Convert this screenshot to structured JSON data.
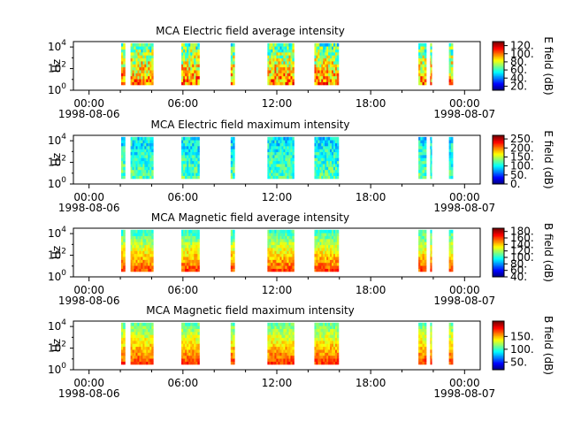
{
  "chart_data": [
    {
      "type": "heatmap",
      "title": "MCA  Electric field average intensity",
      "ylabel": "Hz",
      "colorbar_label": "E field (dB)",
      "colorbar_range": [
        10,
        130
      ],
      "colorbar_ticks": [
        "20.",
        "40.",
        "60.",
        "80.",
        "100.",
        "120."
      ],
      "y_ticks": [
        "10^0",
        "10^2",
        "10^4"
      ],
      "x_ticks": [
        "00:00",
        "06:00",
        "12:00",
        "18:00",
        "00:00"
      ],
      "x_dates": [
        "1998-08-06",
        "1998-08-07"
      ],
      "x_range_hours": [
        -1,
        25
      ],
      "y_range_log10": [
        0,
        4.5
      ],
      "segments_hours": [
        [
          2.05,
          2.3
        ],
        [
          2.65,
          4.1
        ],
        [
          5.9,
          7.05
        ],
        [
          9.05,
          9.3
        ],
        [
          11.4,
          13.1
        ],
        [
          14.4,
          15.95
        ],
        [
          21.05,
          21.55
        ],
        [
          21.8,
          21.9
        ],
        [
          23.0,
          23.25
        ]
      ],
      "value_profile": {
        "low_freq_dB": 100,
        "high_freq_dB": 65,
        "variability_dB": 22
      },
      "data_note_label": ""
    },
    {
      "type": "heatmap",
      "title": "MCA  Electric field maximum intensity",
      "ylabel": "Hz",
      "colorbar_label": "E field (dB)",
      "colorbar_range": [
        0,
        270
      ],
      "colorbar_ticks": [
        "0.",
        "50.",
        "100.",
        "150.",
        "200.",
        "250."
      ],
      "y_ticks": [
        "10^0",
        "10^2",
        "10^4"
      ],
      "x_ticks": [
        "00:00",
        "06:00",
        "12:00",
        "18:00",
        "00:00"
      ],
      "x_dates": [
        "1998-08-06",
        "1998-08-07"
      ],
      "x_range_hours": [
        -1,
        25
      ],
      "y_range_log10": [
        0,
        4.5
      ],
      "segments_hours": [
        [
          2.05,
          2.3
        ],
        [
          2.65,
          4.1
        ],
        [
          5.9,
          7.05
        ],
        [
          9.05,
          9.3
        ],
        [
          11.4,
          13.1
        ],
        [
          14.4,
          15.95
        ],
        [
          21.05,
          21.55
        ],
        [
          21.8,
          21.9
        ],
        [
          23.0,
          23.25
        ]
      ],
      "value_profile": {
        "low_freq_dB": 125,
        "high_freq_dB": 95,
        "variability_dB": 30
      },
      "data_note_label": ""
    },
    {
      "type": "heatmap",
      "title": "MCA  Magnetic field average intensity",
      "ylabel": "Hz",
      "colorbar_label": "B field (dB)",
      "colorbar_range": [
        40,
        190
      ],
      "colorbar_ticks": [
        "40.",
        "60.",
        "80.",
        "100.",
        "120.",
        "140.",
        "160.",
        "180."
      ],
      "y_ticks": [
        "10^0",
        "10^2",
        "10^4"
      ],
      "x_ticks": [
        "00:00",
        "06:00",
        "12:00",
        "18:00",
        "00:00"
      ],
      "x_dates": [
        "1998-08-06",
        "1998-08-07"
      ],
      "x_range_hours": [
        -1,
        25
      ],
      "y_range_log10": [
        0,
        4.5
      ],
      "segments_hours": [
        [
          2.05,
          2.3
        ],
        [
          2.65,
          4.1
        ],
        [
          5.9,
          7.05
        ],
        [
          9.05,
          9.3
        ],
        [
          11.4,
          13.1
        ],
        [
          14.4,
          15.95
        ],
        [
          21.05,
          21.55
        ],
        [
          21.8,
          21.9
        ],
        [
          23.0,
          23.25
        ]
      ],
      "value_profile": {
        "low_freq_dB": 160,
        "high_freq_dB": 105,
        "variability_dB": 12
      },
      "data_note_label": ""
    },
    {
      "type": "heatmap",
      "title": "MCA  Magnetic field maximum intensity",
      "ylabel": "Hz",
      "colorbar_label": "B field (dB)",
      "colorbar_range": [
        20,
        210
      ],
      "colorbar_ticks": [
        "50.",
        "100.",
        "150."
      ],
      "y_ticks": [
        "10^0",
        "10^2",
        "10^4"
      ],
      "x_ticks": [
        "00:00",
        "06:00",
        "12:00",
        "18:00",
        "00:00"
      ],
      "x_dates": [
        "1998-08-06",
        "1998-08-07"
      ],
      "x_range_hours": [
        -1,
        25
      ],
      "y_range_log10": [
        0,
        4.5
      ],
      "segments_hours": [
        [
          2.05,
          2.3
        ],
        [
          2.65,
          4.1
        ],
        [
          5.9,
          7.05
        ],
        [
          9.05,
          9.3
        ],
        [
          11.4,
          13.1
        ],
        [
          14.4,
          15.95
        ],
        [
          21.05,
          21.55
        ],
        [
          21.8,
          21.9
        ],
        [
          23.0,
          23.25
        ]
      ],
      "value_profile": {
        "low_freq_dB": 175,
        "high_freq_dB": 110,
        "variability_dB": 14
      },
      "data_note_label": ""
    }
  ]
}
